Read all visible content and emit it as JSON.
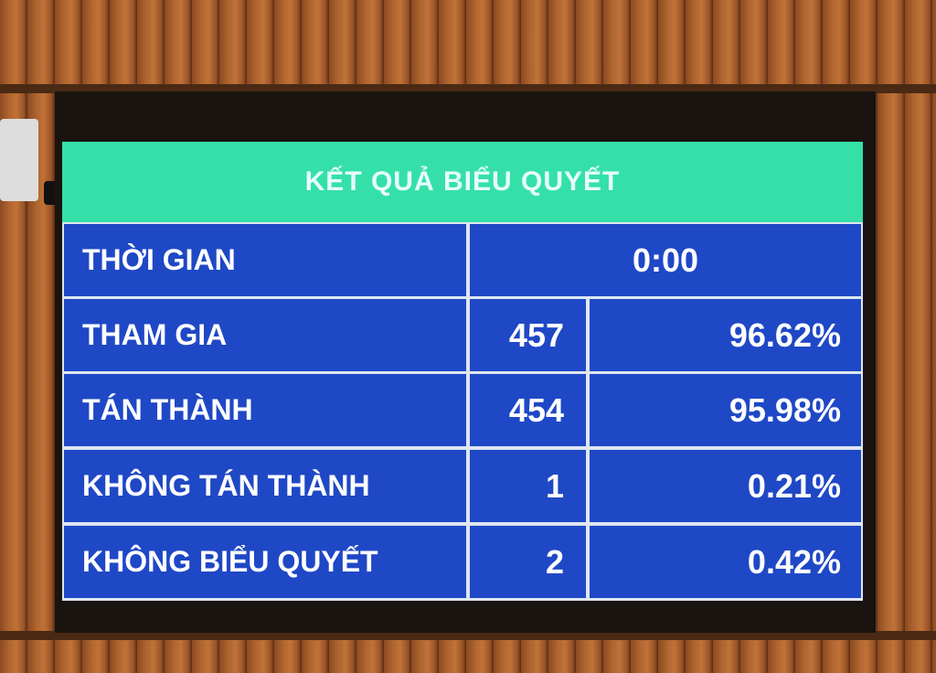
{
  "board": {
    "title": "KẾT QUẢ BIỂU QUYẾT",
    "time": {
      "label": "THỜI GIAN",
      "value": "0:00"
    },
    "rows": [
      {
        "label": "THAM GIA",
        "count": "457",
        "percent": "96.62%"
      },
      {
        "label": "TÁN THÀNH",
        "count": "454",
        "percent": "95.98%"
      },
      {
        "label": "KHÔNG TÁN THÀNH",
        "count": "1",
        "percent": "0.21%"
      },
      {
        "label": "KHÔNG BIỂU QUYẾT",
        "count": "2",
        "percent": "0.42%"
      }
    ],
    "colors": {
      "header": "#35e0a8",
      "cell": "#1f48c6",
      "text": "#ffffff"
    }
  }
}
